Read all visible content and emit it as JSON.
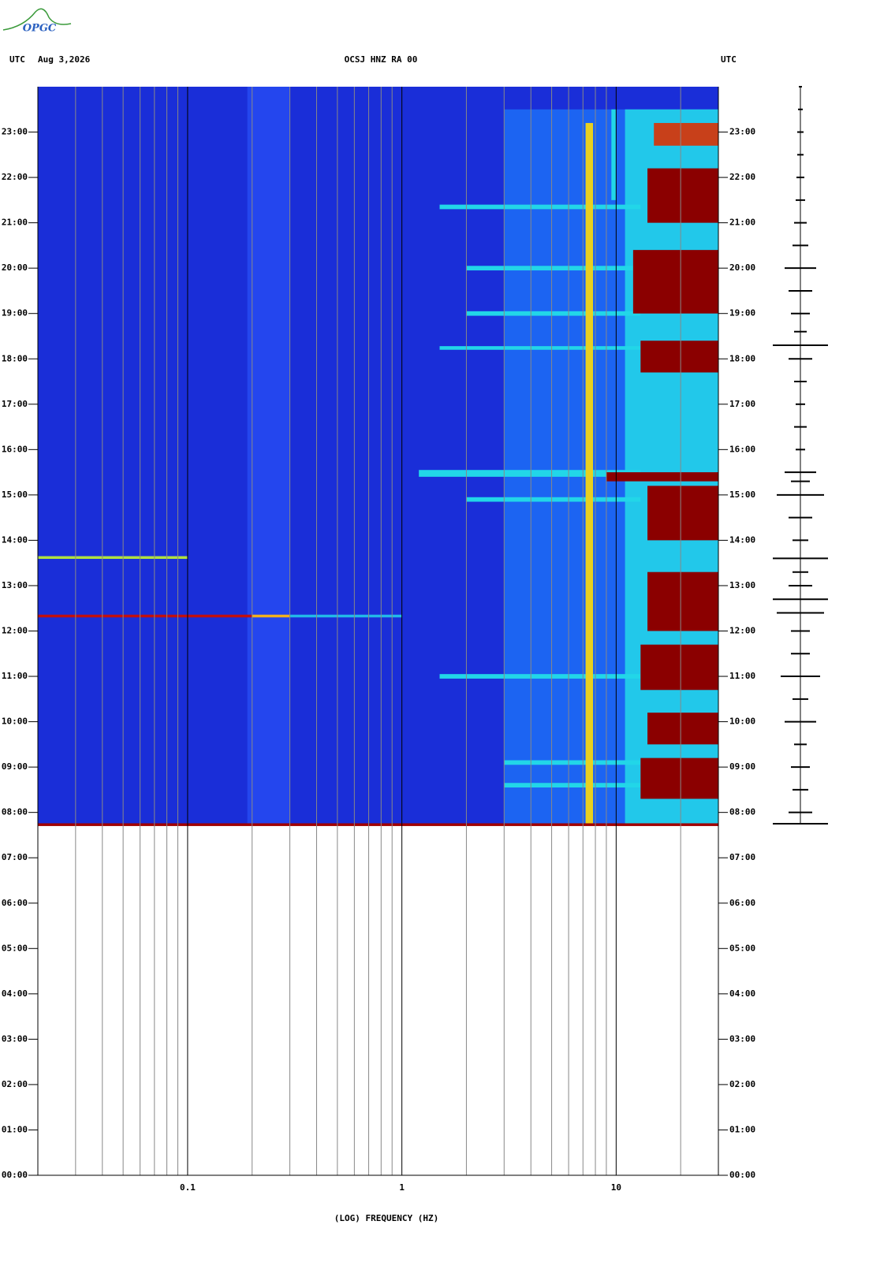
{
  "logo": "OPGC",
  "chart_data": {
    "type": "spectrogram",
    "header_left": "UTC",
    "date": "Aug 3,2026",
    "title": "OCSJ HNZ RA 00",
    "header_right": "UTC",
    "xlabel": "(LOG) FREQUENCY (HZ)",
    "xscale": "log",
    "xlim": [
      0.02,
      30
    ],
    "xticks": [
      0.1,
      1,
      10
    ],
    "xgrid": [
      0.03,
      0.04,
      0.05,
      0.06,
      0.07,
      0.08,
      0.09,
      0.2,
      0.3,
      0.4,
      0.5,
      0.6,
      0.7,
      0.8,
      0.9,
      2,
      3,
      4,
      5,
      6,
      7,
      8,
      9,
      20
    ],
    "ylim": [
      0,
      24
    ],
    "yticks": [
      {
        "value": 0,
        "label": "00:00"
      },
      {
        "value": 1,
        "label": "01:00"
      },
      {
        "value": 2,
        "label": "02:00"
      },
      {
        "value": 3,
        "label": "03:00"
      },
      {
        "value": 4,
        "label": "04:00"
      },
      {
        "value": 5,
        "label": "05:00"
      },
      {
        "value": 6,
        "label": "06:00"
      },
      {
        "value": 7,
        "label": "07:00"
      },
      {
        "value": 8,
        "label": "08:00"
      },
      {
        "value": 9,
        "label": "09:00"
      },
      {
        "value": 10,
        "label": "10:00"
      },
      {
        "value": 11,
        "label": "11:00"
      },
      {
        "value": 12,
        "label": "12:00"
      },
      {
        "value": 13,
        "label": "13:00"
      },
      {
        "value": 14,
        "label": "14:00"
      },
      {
        "value": 15,
        "label": "15:00"
      },
      {
        "value": 16,
        "label": "16:00"
      },
      {
        "value": 17,
        "label": "17:00"
      },
      {
        "value": 18,
        "label": "18:00"
      },
      {
        "value": 19,
        "label": "19:00"
      },
      {
        "value": 20,
        "label": "20:00"
      },
      {
        "value": 21,
        "label": "21:00"
      },
      {
        "value": 22,
        "label": "22:00"
      },
      {
        "value": 23,
        "label": "23:00"
      }
    ],
    "bands": [
      {
        "t0": 7.72,
        "t1": 24,
        "f0": 0.02,
        "f1": 30,
        "color": "#1a2ed8"
      },
      {
        "t0": 7.72,
        "t1": 24,
        "f0": 0.19,
        "f1": 0.3,
        "color": "#2446ee"
      },
      {
        "t0": 7.72,
        "t1": 23.5,
        "f0": 3,
        "f1": 30,
        "color": "#1c64f2"
      },
      {
        "t0": 7.72,
        "t1": 23.5,
        "f0": 11,
        "f1": 30,
        "color": "#22c8ea"
      },
      {
        "t0": 21.3,
        "t1": 21.4,
        "f0": 1.5,
        "f1": 13,
        "color": "#22d6e8"
      },
      {
        "t0": 19.95,
        "t1": 20.05,
        "f0": 2,
        "f1": 13,
        "color": "#22d6e8"
      },
      {
        "t0": 18.95,
        "t1": 19.05,
        "f0": 2,
        "f1": 13,
        "color": "#22d6e8"
      },
      {
        "t0": 18.2,
        "t1": 18.28,
        "f0": 1.5,
        "f1": 13,
        "color": "#22d6e8"
      },
      {
        "t0": 15.4,
        "t1": 15.55,
        "f0": 1.2,
        "f1": 13,
        "color": "#22d6e8"
      },
      {
        "t0": 14.85,
        "t1": 14.95,
        "f0": 2,
        "f1": 13,
        "color": "#22d6e8"
      },
      {
        "t0": 10.95,
        "t1": 11.05,
        "f0": 1.5,
        "f1": 13,
        "color": "#22d6e8"
      },
      {
        "t0": 9.05,
        "t1": 9.15,
        "f0": 3,
        "f1": 13,
        "color": "#22d6e8"
      },
      {
        "t0": 8.55,
        "t1": 8.65,
        "f0": 3,
        "f1": 13,
        "color": "#22d6e8"
      },
      {
        "t0": 22.7,
        "t1": 23.2,
        "f0": 15,
        "f1": 30,
        "color": "#c8401a"
      },
      {
        "t0": 21,
        "t1": 22.2,
        "f0": 14,
        "f1": 30,
        "color": "#8b0000"
      },
      {
        "t0": 19,
        "t1": 20.4,
        "f0": 12,
        "f1": 30,
        "color": "#8b0000"
      },
      {
        "t0": 17.7,
        "t1": 18.4,
        "f0": 13,
        "f1": 30,
        "color": "#8b0000"
      },
      {
        "t0": 15.3,
        "t1": 15.5,
        "f0": 9,
        "f1": 30,
        "color": "#8b0000"
      },
      {
        "t0": 14,
        "t1": 15.2,
        "f0": 14,
        "f1": 30,
        "color": "#8b0000"
      },
      {
        "t0": 12,
        "t1": 13.3,
        "f0": 14,
        "f1": 30,
        "color": "#8b0000"
      },
      {
        "t0": 10.7,
        "t1": 11.7,
        "f0": 13,
        "f1": 30,
        "color": "#8b0000"
      },
      {
        "t0": 9.5,
        "t1": 10.2,
        "f0": 14,
        "f1": 30,
        "color": "#8b0000"
      },
      {
        "t0": 8.3,
        "t1": 9.2,
        "f0": 13,
        "f1": 30,
        "color": "#8b0000"
      },
      {
        "t0": 7.72,
        "t1": 23.2,
        "f0": 7.2,
        "f1": 7.8,
        "color": "#e8d020"
      },
      {
        "t0": 21.5,
        "t1": 23.5,
        "f0": 9.5,
        "f1": 10,
        "color": "#22d6e8"
      },
      {
        "t0": 12.3,
        "t1": 12.36,
        "f0": 0.02,
        "f1": 0.2,
        "color": "#c01010"
      },
      {
        "t0": 12.3,
        "t1": 12.36,
        "f0": 0.2,
        "f1": 0.3,
        "color": "#f0b020"
      },
      {
        "t0": 12.3,
        "t1": 12.36,
        "f0": 0.3,
        "f1": 1,
        "color": "#22b8e8"
      },
      {
        "t0": 13.59,
        "t1": 13.65,
        "f0": 0.02,
        "f1": 0.1,
        "color": "#b0e040"
      },
      {
        "t0": 7.7,
        "t1": 7.76,
        "f0": 0.02,
        "f1": 30,
        "color": "#a00000"
      }
    ],
    "gridcolor": "#888888",
    "tickgridcolor": "#000000",
    "trace": {
      "color": "#000000",
      "times": [
        7.75,
        8,
        8.5,
        9,
        9.5,
        10,
        10.5,
        11,
        11.5,
        12,
        12.4,
        12.7,
        13,
        13.3,
        13.6,
        14,
        14.5,
        15,
        15.3,
        15.5,
        16,
        16.5,
        17,
        17.5,
        18,
        18.3,
        18.6,
        19,
        19.5,
        20,
        20.5,
        21,
        21.5,
        22,
        22.5,
        23,
        23.5,
        24
      ],
      "amplitudes": [
        35,
        15,
        10,
        12,
        8,
        20,
        10,
        25,
        12,
        12,
        30,
        35,
        15,
        10,
        35,
        10,
        15,
        30,
        12,
        20,
        6,
        8,
        6,
        8,
        15,
        35,
        8,
        12,
        15,
        20,
        10,
        8,
        6,
        5,
        4,
        4,
        3,
        2
      ]
    }
  }
}
